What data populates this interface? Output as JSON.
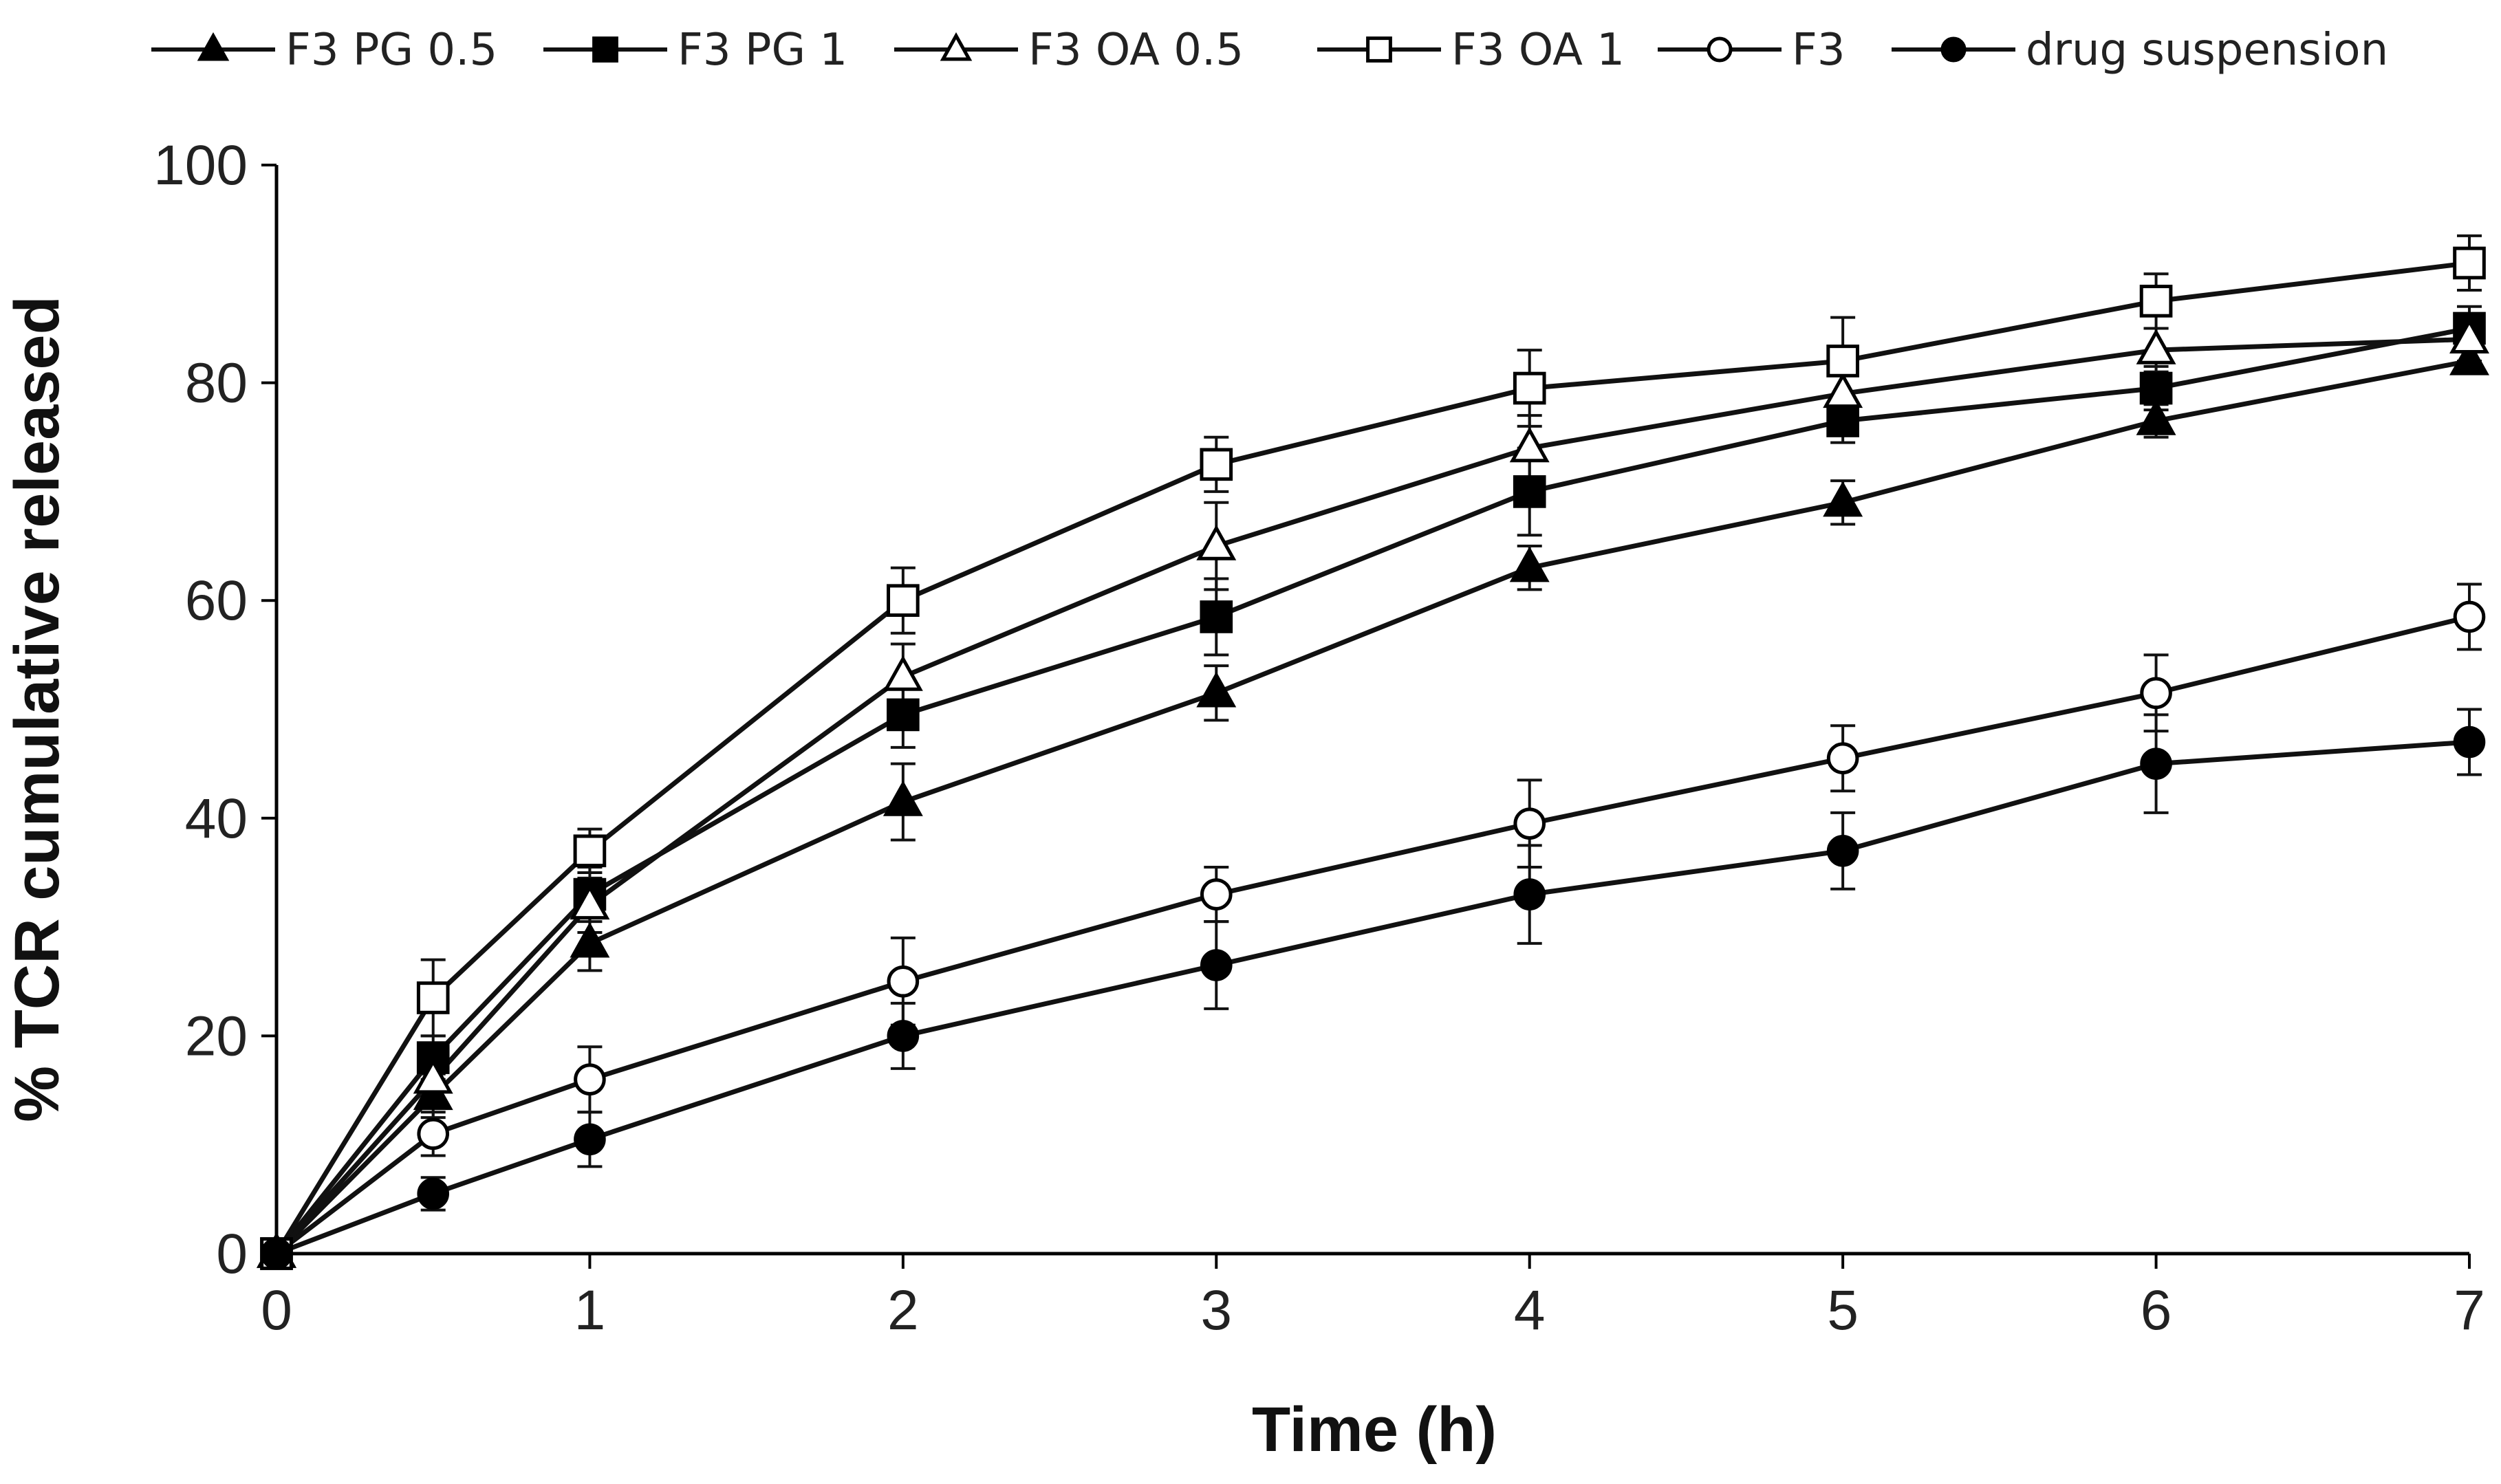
{
  "chart_data": {
    "type": "line",
    "title": "",
    "xlabel": "Time (h)",
    "ylabel": "% TCR cumulative released",
    "xlim": [
      0,
      7
    ],
    "ylim": [
      0,
      100
    ],
    "x_ticks": [
      0,
      1,
      2,
      3,
      4,
      5,
      6,
      7
    ],
    "y_ticks": [
      0,
      20,
      40,
      60,
      80,
      100
    ],
    "x": [
      0,
      0.5,
      1,
      2,
      3,
      4,
      5,
      6,
      7
    ],
    "grid": false,
    "legend_position": "top",
    "series": [
      {
        "name": "F3 PG 0.5",
        "marker": "triangle-filled",
        "values": [
          0,
          14.5,
          28.5,
          41.5,
          51.5,
          63,
          69,
          76.5,
          82
        ],
        "errors": [
          0,
          2.0,
          2.5,
          3.5,
          2.5,
          2.0,
          2.0,
          1.5,
          1.0
        ]
      },
      {
        "name": "F3 PG 1",
        "marker": "square-filled",
        "values": [
          0,
          18,
          33,
          49.5,
          58.5,
          70,
          76.5,
          79.5,
          85
        ],
        "errors": [
          0,
          2.0,
          2.5,
          3.0,
          3.5,
          4.0,
          2.0,
          2.0,
          2.0
        ]
      },
      {
        "name": "F3 OA 0.5",
        "marker": "triangle-open",
        "values": [
          0,
          16,
          32,
          53,
          65,
          74,
          79,
          83,
          84
        ],
        "errors": [
          0,
          2.0,
          2.5,
          3.0,
          4.0,
          3.0,
          2.5,
          2.0,
          2.0
        ]
      },
      {
        "name": "F3 OA 1",
        "marker": "square-open",
        "values": [
          0,
          23.5,
          37,
          60,
          72.5,
          79.5,
          82,
          87.5,
          91
        ],
        "errors": [
          0,
          3.5,
          2.0,
          3.0,
          2.5,
          3.5,
          4.0,
          2.5,
          2.5
        ]
      },
      {
        "name": "F3",
        "marker": "circle-open",
        "values": [
          0,
          11,
          16,
          25,
          33,
          39.5,
          45.5,
          51.5,
          58.5
        ],
        "errors": [
          0,
          2.0,
          3.0,
          4.0,
          2.5,
          4.0,
          3.0,
          3.5,
          3.0
        ]
      },
      {
        "name": "drug suspension",
        "marker": "circle-filled",
        "values": [
          0,
          5.5,
          10.5,
          20,
          26.5,
          33,
          37,
          45,
          47
        ],
        "errors": [
          0,
          1.5,
          2.5,
          3.0,
          4.0,
          4.5,
          3.5,
          4.5,
          3.0
        ]
      }
    ]
  }
}
